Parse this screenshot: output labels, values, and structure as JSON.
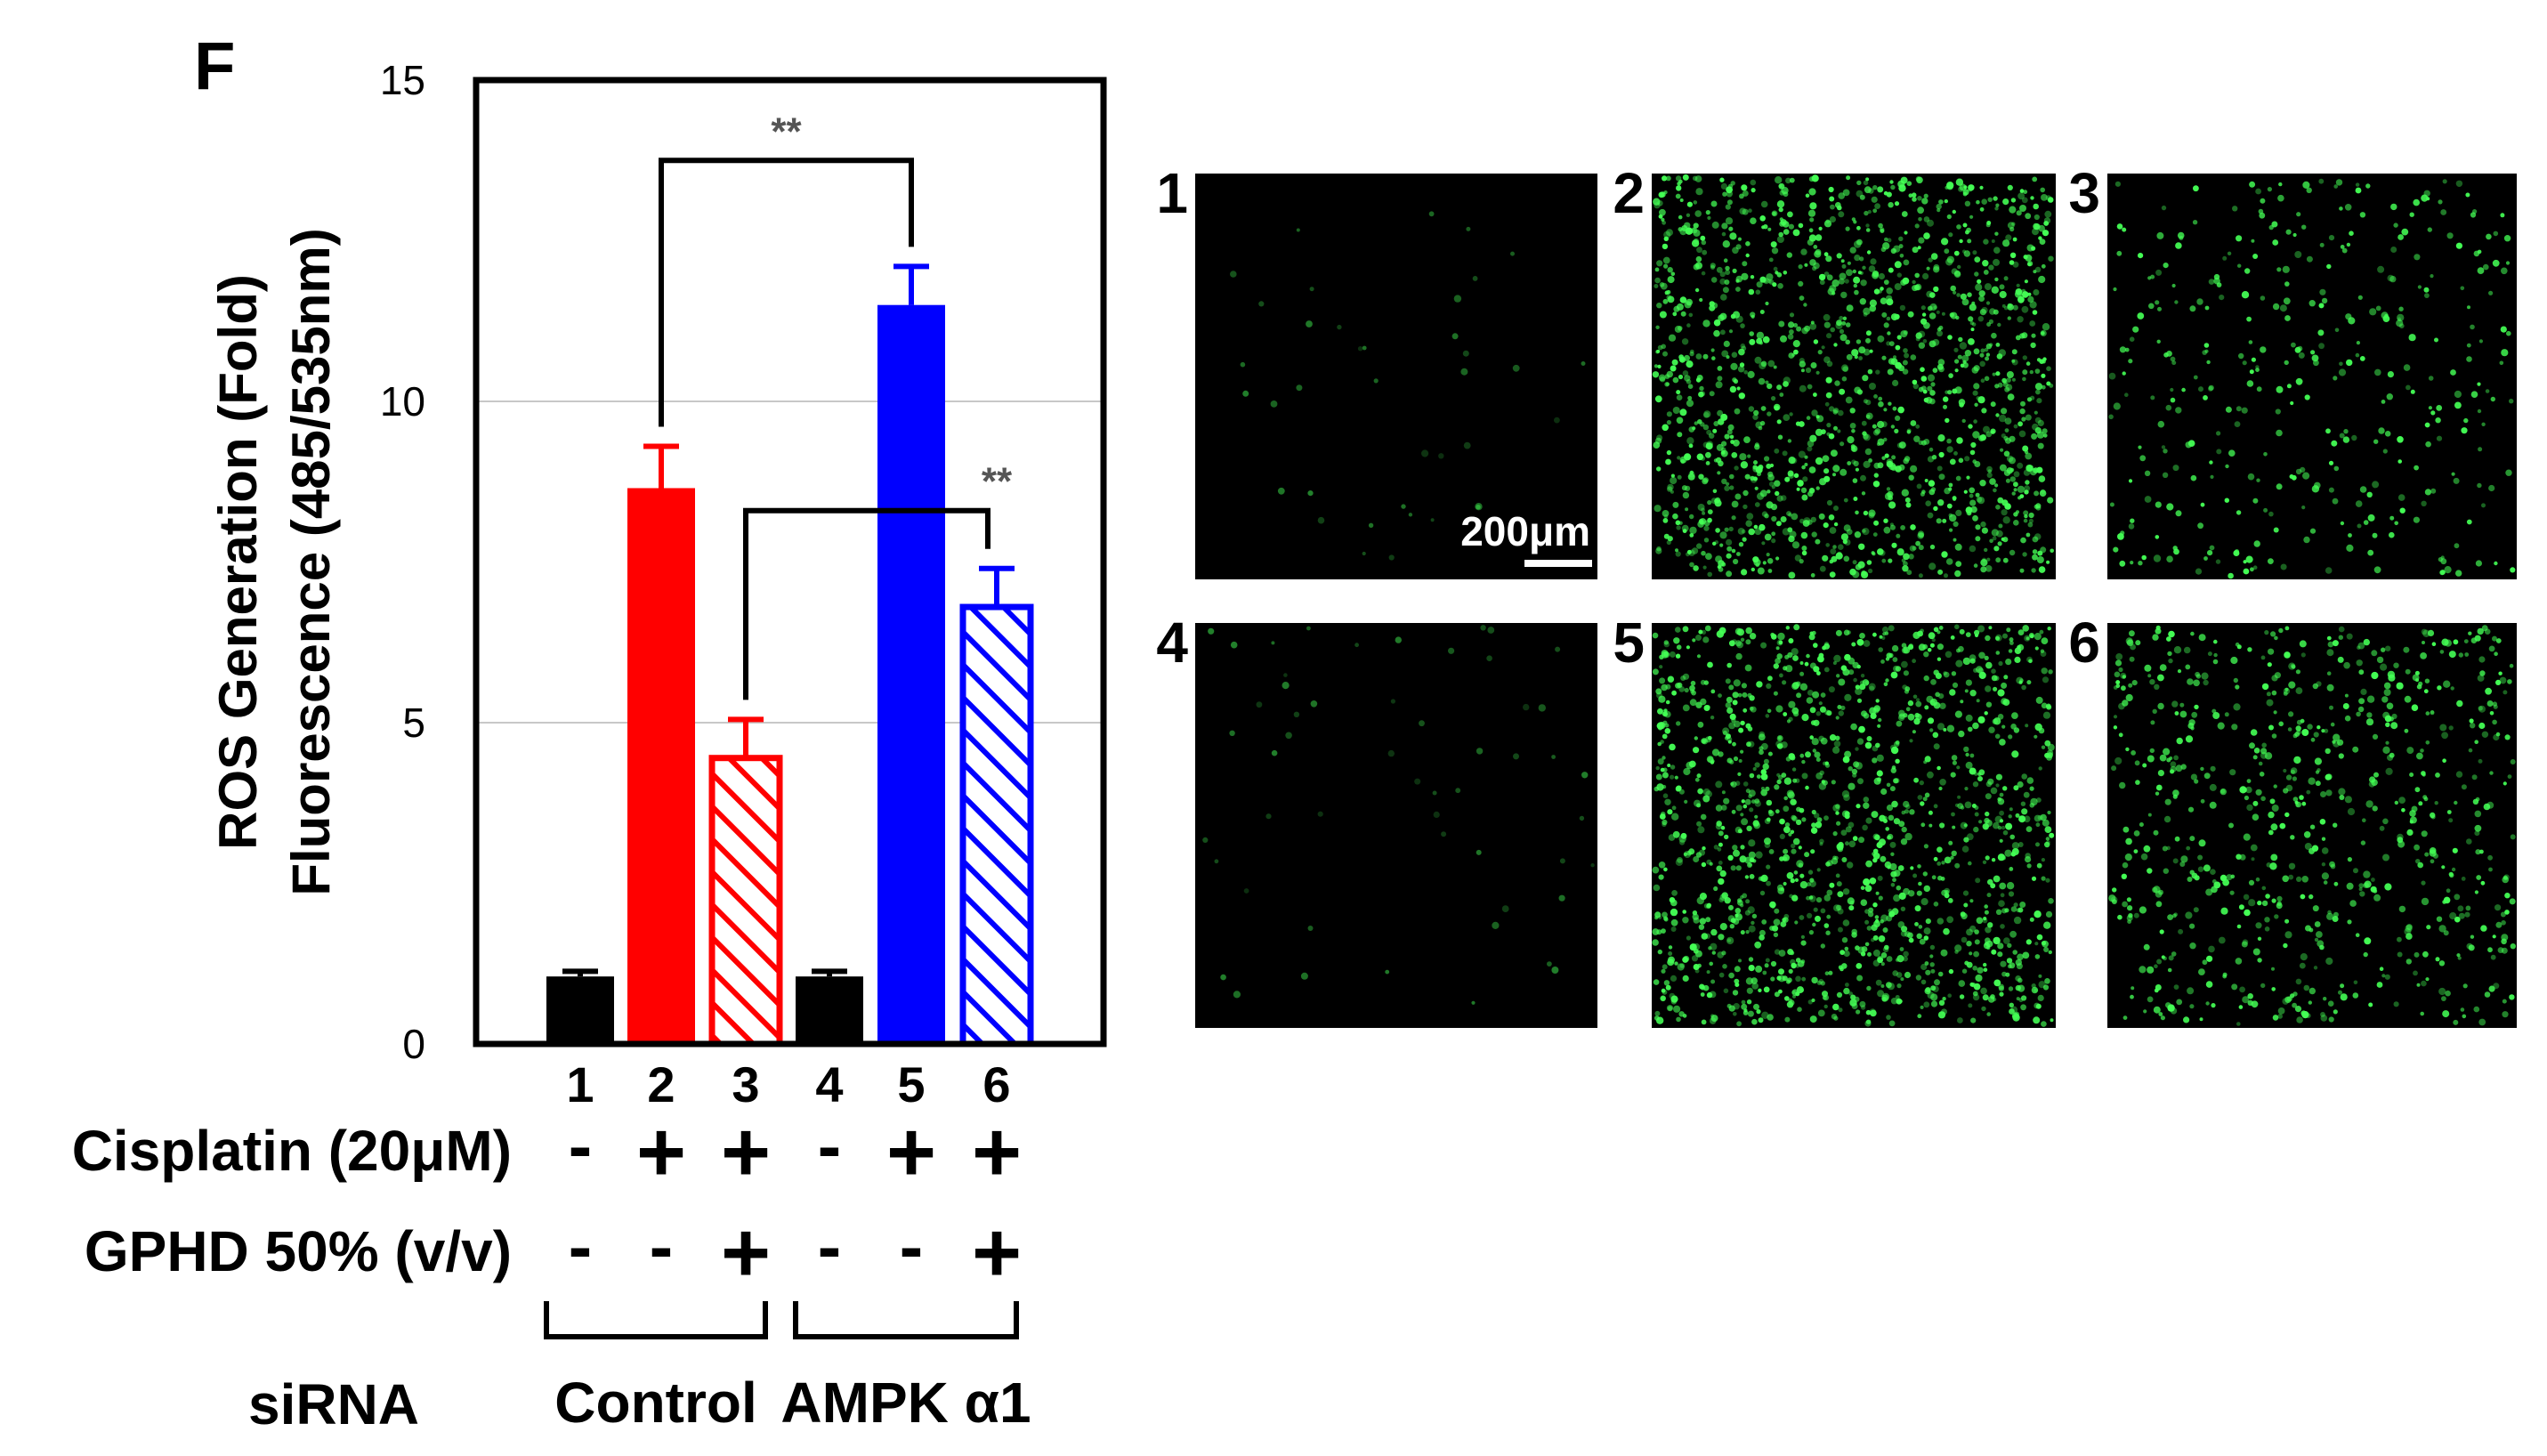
{
  "panel_label": "F",
  "chart_data": {
    "type": "bar",
    "ylabel": [
      "ROS Generation (Fold)",
      "Fluorescence (485/535nm)"
    ],
    "ylim": [
      0,
      15
    ],
    "yticks": [
      0,
      5,
      10,
      15
    ],
    "grid": true,
    "categories": [
      "1",
      "2",
      "3",
      "4",
      "5",
      "6"
    ],
    "values": [
      1.05,
      8.65,
      4.45,
      1.05,
      11.5,
      6.8
    ],
    "errors": [
      0.08,
      0.65,
      0.6,
      0.08,
      0.6,
      0.6
    ],
    "colors": [
      "#000000",
      "#ff0000",
      "#ff0000",
      "#000000",
      "#0000ff",
      "#0000ff"
    ],
    "hatched": [
      false,
      false,
      true,
      false,
      false,
      true
    ],
    "significance": [
      {
        "from": 2,
        "to": 5,
        "label": "**"
      },
      {
        "from": 3,
        "to": 6,
        "label": "**"
      }
    ]
  },
  "conditions": [
    {
      "label": "Cisplatin (20μM)",
      "values": [
        "-",
        "+",
        "+",
        "-",
        "+",
        "+"
      ]
    },
    {
      "label": "GPHD 50% (v/v)",
      "values": [
        "-",
        "-",
        "+",
        "-",
        "-",
        "+"
      ]
    }
  ],
  "sirna": {
    "label": "siRNA",
    "groups": [
      "Control",
      "AMPK α1"
    ]
  },
  "micrographs": {
    "panels": [
      {
        "label": "1",
        "intensity": 0.02
      },
      {
        "label": "2",
        "intensity": 1.0
      },
      {
        "label": "3",
        "intensity": 0.25
      },
      {
        "label": "4",
        "intensity": 0.03
      },
      {
        "label": "5",
        "intensity": 1.0
      },
      {
        "label": "6",
        "intensity": 0.5
      }
    ],
    "scale_bar": "200μm",
    "dot_color": "#44ff55"
  }
}
